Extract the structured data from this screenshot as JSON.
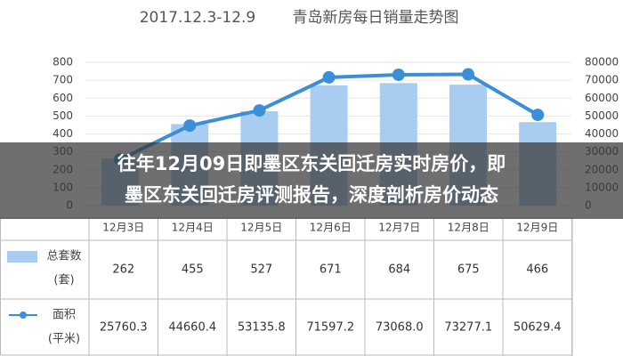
{
  "chart_data": {
    "type": "bar",
    "title": "2017.12.3-12.9",
    "subtitle": "青岛新房每日销量走势图",
    "categories": [
      "12月3日",
      "12月4日",
      "12月5日",
      "12月6日",
      "12月7日",
      "12月8日",
      "12月9日"
    ],
    "series": [
      {
        "name": "总套数",
        "unit": "(套)",
        "color": "#a8cdf1",
        "values": [
          262,
          455,
          527,
          671,
          684,
          675,
          466
        ]
      },
      {
        "name": "面积",
        "unit": "(平米)",
        "color": "#3b8fd9",
        "axis": "y2",
        "type": "line",
        "values": [
          25760.3,
          44660.4,
          53135.8,
          71597.2,
          73068.0,
          73277.1,
          50629.4
        ],
        "value_labels": [
          "25760.3",
          "44660.4",
          "53135.8",
          "71597.2",
          "73068.0",
          "73277.1",
          "50629.4"
        ]
      }
    ],
    "ylim": [
      0,
      800
    ],
    "yticks": [
      0,
      100,
      200,
      300,
      400,
      500,
      600,
      700,
      800
    ],
    "y2lim": [
      0,
      80000
    ],
    "y2ticks": [
      0,
      10000,
      20000,
      30000,
      40000,
      50000,
      60000,
      70000,
      80000
    ],
    "grid": true
  },
  "overlay": {
    "lines": [
      "往年12月09日即墨区东关回迁房实时房价，即",
      "墨区东关回迁房评测报告，深度剖析房价动态"
    ]
  }
}
